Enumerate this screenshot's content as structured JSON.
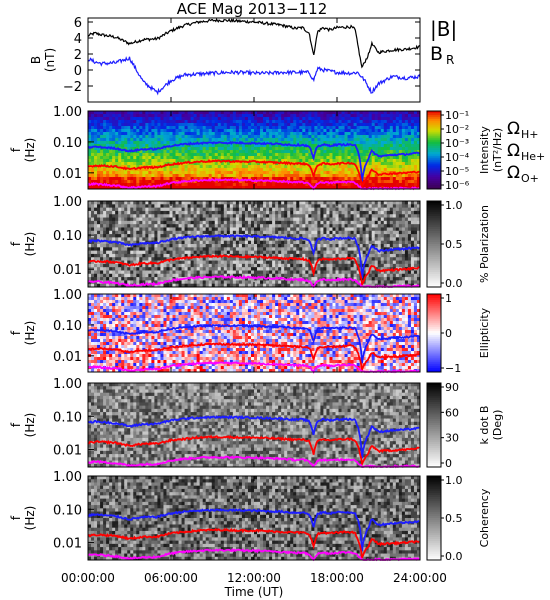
{
  "chart_data": {
    "title": "ACE Mag 2013−112",
    "x_axis": {
      "label": "Time (UT)",
      "range": [
        0,
        24
      ],
      "ticks": [
        0,
        6,
        12,
        18,
        24
      ],
      "tick_labels": [
        "00:00:00",
        "06:00:00",
        "12:00:00",
        "18:00:00",
        "24:00:00"
      ]
    },
    "panels": [
      {
        "id": "field",
        "type": "line",
        "ylabel": "B\n(nT)",
        "ylim": [
          -4,
          6.5
        ],
        "y_ticks": [
          -2,
          0,
          2,
          4,
          6
        ],
        "y_tick_labels": [
          "−2",
          "0",
          "2",
          "4",
          "6"
        ],
        "legend": [
          "|B|",
          "B",
          "R"
        ],
        "series": [
          {
            "name": "|B|",
            "color": "#000000",
            "x": [
              0,
              0.5,
              1,
              2,
              3,
              4,
              5,
              6,
              7,
              8,
              9,
              10,
              11,
              12,
              13,
              14,
              15,
              15.5,
              16,
              16.3,
              16.6,
              17,
              17.5,
              18,
              19,
              19.3,
              19.8,
              20.3,
              20.5,
              21,
              22,
              23,
              24
            ],
            "y": [
              4.3,
              4.6,
              4.4,
              4.1,
              3.3,
              3.8,
              3.9,
              4.9,
              5.6,
              6.0,
              6.2,
              6.2,
              6.1,
              6.0,
              5.8,
              5.6,
              5.2,
              5.3,
              4.6,
              1.8,
              4.8,
              5.3,
              5.0,
              5.3,
              5.4,
              5.1,
              0.3,
              2.0,
              3.3,
              2.2,
              2.5,
              2.6,
              2.9
            ]
          },
          {
            "name": "B",
            "color": "#1c1cff",
            "x": [
              0,
              0.5,
              1,
              2,
              3,
              4,
              5,
              6,
              7,
              8,
              9,
              10,
              11,
              12,
              13,
              14,
              15,
              16,
              16.3,
              16.6,
              17,
              18,
              19,
              19.5,
              20,
              20.5,
              21,
              22,
              23,
              24
            ],
            "y": [
              1.4,
              1.0,
              0.8,
              0.9,
              1.5,
              -1.5,
              -2.8,
              -1.3,
              -0.6,
              -0.5,
              -0.4,
              -0.3,
              -0.3,
              -0.4,
              -0.4,
              -0.3,
              -0.3,
              -0.3,
              -1.3,
              0.2,
              0.0,
              -0.3,
              -0.4,
              -0.3,
              -1.3,
              -2.8,
              -1.7,
              -0.8,
              -1.0,
              -0.8
            ]
          }
        ]
      },
      {
        "id": "intensity",
        "type": "heatmap",
        "ylabel": "f\n(Hz)",
        "ylim": [
          0.003,
          1.0
        ],
        "yscale": "log",
        "y_tick_labels": [
          "1.00",
          "0.10",
          "0.01"
        ],
        "colorbar": {
          "label": "Intensity\n(nT²/Hz)",
          "scale": "log",
          "tick_labels": [
            "10⁻¹",
            "10⁻²",
            "10⁻³",
            "10⁻⁴",
            "10⁻⁵",
            "10⁻⁶"
          ],
          "colormap": "rainbow"
        },
        "overlay_legend": [
          {
            "symbol": "Ω",
            "subscript": "H+",
            "color": "#1c1cff"
          },
          {
            "symbol": "Ω",
            "subscript": "He+",
            "color": "#ff0000"
          },
          {
            "symbol": "Ω",
            "subscript": "O+",
            "color": "#ff00ff"
          }
        ]
      },
      {
        "id": "polarization",
        "type": "heatmap",
        "ylabel": "f\n(Hz)",
        "ylim": [
          0.003,
          1.0
        ],
        "yscale": "log",
        "y_tick_labels": [
          "1.00",
          "0.10",
          "0.01"
        ],
        "colorbar": {
          "label": "% Polarization",
          "range": [
            0,
            1
          ],
          "tick_labels": [
            "1.0",
            "0.5",
            "0.0"
          ],
          "colormap": "gray"
        }
      },
      {
        "id": "ellipticity",
        "type": "heatmap",
        "ylabel": "f\n(Hz)",
        "ylim": [
          0.003,
          1.0
        ],
        "yscale": "log",
        "y_tick_labels": [
          "1.00",
          "0.10",
          "0.01"
        ],
        "colorbar": {
          "label": "Ellipticity",
          "range": [
            -1,
            1
          ],
          "tick_labels": [
            "1",
            "0",
            "−1"
          ],
          "colormap": "blue-white-red"
        }
      },
      {
        "id": "kdotb",
        "type": "heatmap",
        "ylabel": "f\n(Hz)",
        "ylim": [
          0.003,
          1.0
        ],
        "yscale": "log",
        "y_tick_labels": [
          "1.00",
          "0.10",
          "0.01"
        ],
        "colorbar": {
          "label": "k dot B\n(Deg)",
          "range": [
            0,
            90
          ],
          "tick_labels": [
            "90",
            "60",
            "30",
            "0"
          ],
          "colormap": "gray"
        }
      },
      {
        "id": "coherency",
        "type": "heatmap",
        "ylabel": "f\n(Hz)",
        "ylim": [
          0.003,
          1.0
        ],
        "yscale": "log",
        "y_tick_labels": [
          "1.00",
          "0.10",
          "0.01"
        ],
        "colorbar": {
          "label": "Coherency",
          "range": [
            0,
            1
          ],
          "tick_labels": [
            "1.0",
            "0.5",
            "0.0"
          ],
          "colormap": "gray"
        }
      }
    ],
    "gyrofrequency_curves": {
      "x": [
        0,
        0.5,
        1,
        2,
        3,
        4,
        5,
        6,
        7,
        8,
        9,
        10,
        11,
        12,
        13,
        14,
        15,
        15.5,
        16,
        16.3,
        16.6,
        17,
        17.5,
        18,
        19,
        19.3,
        19.8,
        20.3,
        20.5,
        21,
        22,
        23,
        24
      ],
      "series": [
        {
          "name": "H+",
          "color": "#1c1cff",
          "y": [
            0.065,
            0.07,
            0.067,
            0.062,
            0.05,
            0.058,
            0.059,
            0.075,
            0.085,
            0.091,
            0.094,
            0.094,
            0.093,
            0.091,
            0.088,
            0.085,
            0.079,
            0.081,
            0.07,
            0.027,
            0.073,
            0.081,
            0.076,
            0.081,
            0.082,
            0.078,
            0.005,
            0.03,
            0.05,
            0.034,
            0.038,
            0.04,
            0.044
          ]
        },
        {
          "name": "He+",
          "color": "#ff0000",
          "y": [
            0.016,
            0.017,
            0.017,
            0.016,
            0.013,
            0.015,
            0.015,
            0.019,
            0.021,
            0.023,
            0.024,
            0.024,
            0.023,
            0.023,
            0.022,
            0.021,
            0.02,
            0.02,
            0.018,
            0.007,
            0.018,
            0.02,
            0.019,
            0.02,
            0.021,
            0.019,
            0.0035,
            0.008,
            0.013,
            0.009,
            0.0095,
            0.01,
            0.011
          ]
        },
        {
          "name": "O+",
          "color": "#ff00ff",
          "y": [
            0.0041,
            0.0044,
            0.0042,
            0.0039,
            0.0033,
            0.0036,
            0.0037,
            0.0047,
            0.0053,
            0.0057,
            0.0059,
            0.0059,
            0.0058,
            0.0057,
            0.0055,
            0.0053,
            0.0049,
            0.005,
            0.0044,
            0.0031,
            0.0046,
            0.005,
            0.0047,
            0.005,
            0.0051,
            0.0048,
            0.003,
            0.0031,
            0.0031,
            0.0031,
            0.0031,
            0.0032,
            0.0032
          ]
        }
      ]
    }
  }
}
